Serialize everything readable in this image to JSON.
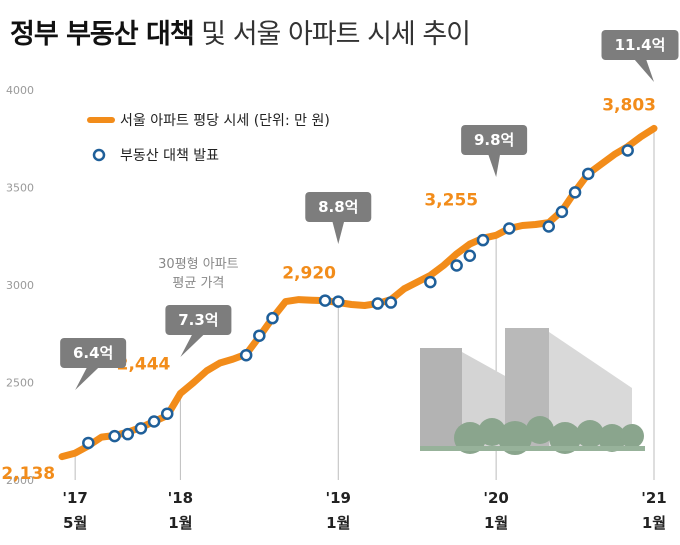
{
  "title": {
    "bold": "정부 부동산 대책",
    "light": "및 서울 아파트 시세 추이"
  },
  "chart_data": {
    "type": "line",
    "title": "정부 부동산 대책 및 서울 아파트 시세 추이",
    "ylim": [
      2000,
      4000
    ],
    "yticks": [
      2000,
      2500,
      3000,
      3500,
      4000
    ],
    "xlim": [
      "2017-04",
      "2021-01"
    ],
    "xticks": [
      {
        "x": "2017-05",
        "label_top": "'17",
        "label_bottom": "5월"
      },
      {
        "x": "2018-01",
        "label_top": "'18",
        "label_bottom": "1월"
      },
      {
        "x": "2019-01",
        "label_top": "'19",
        "label_bottom": "1월"
      },
      {
        "x": "2020-01",
        "label_top": "'20",
        "label_bottom": "1월"
      },
      {
        "x": "2021-01",
        "label_top": "'21",
        "label_bottom": "1월"
      }
    ],
    "grid": false,
    "legend_position": "top-left",
    "legend": [
      {
        "label": "서울 아파트 평당 시세 (단위: 만 원)",
        "kind": "line",
        "color": "#f28c1a"
      },
      {
        "label": "부동산 대책 발표",
        "kind": "marker",
        "color": "#1f5f99"
      }
    ],
    "series": [
      {
        "name": "서울 아파트 평당 시세 (단위: 만 원)",
        "color": "#f28c1a",
        "points": [
          [
            "2017-04",
            2120
          ],
          [
            "2017-05",
            2138
          ],
          [
            "2017-06",
            2175
          ],
          [
            "2017-07",
            2220
          ],
          [
            "2017-08",
            2228
          ],
          [
            "2017-09",
            2245
          ],
          [
            "2017-10",
            2270
          ],
          [
            "2017-11",
            2300
          ],
          [
            "2017-12",
            2330
          ],
          [
            "2018-01",
            2444
          ],
          [
            "2018-02",
            2500
          ],
          [
            "2018-03",
            2560
          ],
          [
            "2018-04",
            2600
          ],
          [
            "2018-05",
            2620
          ],
          [
            "2018-06",
            2645
          ],
          [
            "2018-07",
            2735
          ],
          [
            "2018-08",
            2830
          ],
          [
            "2018-09",
            2915
          ],
          [
            "2018-10",
            2925
          ],
          [
            "2018-11",
            2922
          ],
          [
            "2018-12",
            2920
          ],
          [
            "2019-01",
            2910
          ],
          [
            "2019-02",
            2900
          ],
          [
            "2019-03",
            2895
          ],
          [
            "2019-04",
            2905
          ],
          [
            "2019-05",
            2925
          ],
          [
            "2019-06",
            2980
          ],
          [
            "2019-07",
            3015
          ],
          [
            "2019-08",
            3050
          ],
          [
            "2019-09",
            3100
          ],
          [
            "2019-10",
            3160
          ],
          [
            "2019-11",
            3210
          ],
          [
            "2019-12",
            3240
          ],
          [
            "2020-01",
            3255
          ],
          [
            "2020-02",
            3290
          ],
          [
            "2020-03",
            3305
          ],
          [
            "2020-04",
            3310
          ],
          [
            "2020-05",
            3320
          ],
          [
            "2020-06",
            3380
          ],
          [
            "2020-07",
            3480
          ],
          [
            "2020-08",
            3570
          ],
          [
            "2020-09",
            3620
          ],
          [
            "2020-10",
            3670
          ],
          [
            "2020-11",
            3710
          ],
          [
            "2020-12",
            3760
          ],
          [
            "2021-01",
            3803
          ]
        ]
      }
    ],
    "announcements": [
      [
        "2017-06",
        2190
      ],
      [
        "2017-08",
        2225
      ],
      [
        "2017-09",
        2235
      ],
      [
        "2017-10",
        2265
      ],
      [
        "2017-11",
        2300
      ],
      [
        "2017-12",
        2340
      ],
      [
        "2018-06",
        2640
      ],
      [
        "2018-07",
        2740
      ],
      [
        "2018-08",
        2830
      ],
      [
        "2018-12",
        2920
      ],
      [
        "2019-01",
        2915
      ],
      [
        "2019-04",
        2905
      ],
      [
        "2019-05",
        2910
      ],
      [
        "2019-08",
        3015
      ],
      [
        "2019-10",
        3100
      ],
      [
        "2019-11",
        3150
      ],
      [
        "2019-12",
        3230
      ],
      [
        "2020-02",
        3290
      ],
      [
        "2020-05",
        3300
      ],
      [
        "2020-06",
        3375
      ],
      [
        "2020-07",
        3475
      ],
      [
        "2020-08",
        3570
      ],
      [
        "2020-11",
        3690
      ]
    ],
    "point_labels": [
      {
        "x": "2017-05",
        "label": "2,138"
      },
      {
        "x": "2018-01",
        "label": "2,444"
      },
      {
        "x": "2018-12",
        "label": "2,920"
      },
      {
        "x": "2020-01",
        "label": "3,255"
      },
      {
        "x": "2021-01",
        "label": "3,803"
      }
    ],
    "callouts": [
      {
        "x": "2017-05",
        "text": "6.4억"
      },
      {
        "x": "2018-01",
        "text": "7.3억",
        "note": [
          "30평형 아파트",
          "평균 가격"
        ]
      },
      {
        "x": "2019-01",
        "text": "8.8억"
      },
      {
        "x": "2020-01",
        "text": "9.8억"
      },
      {
        "x": "2021-01",
        "text": "11.4억"
      }
    ]
  }
}
